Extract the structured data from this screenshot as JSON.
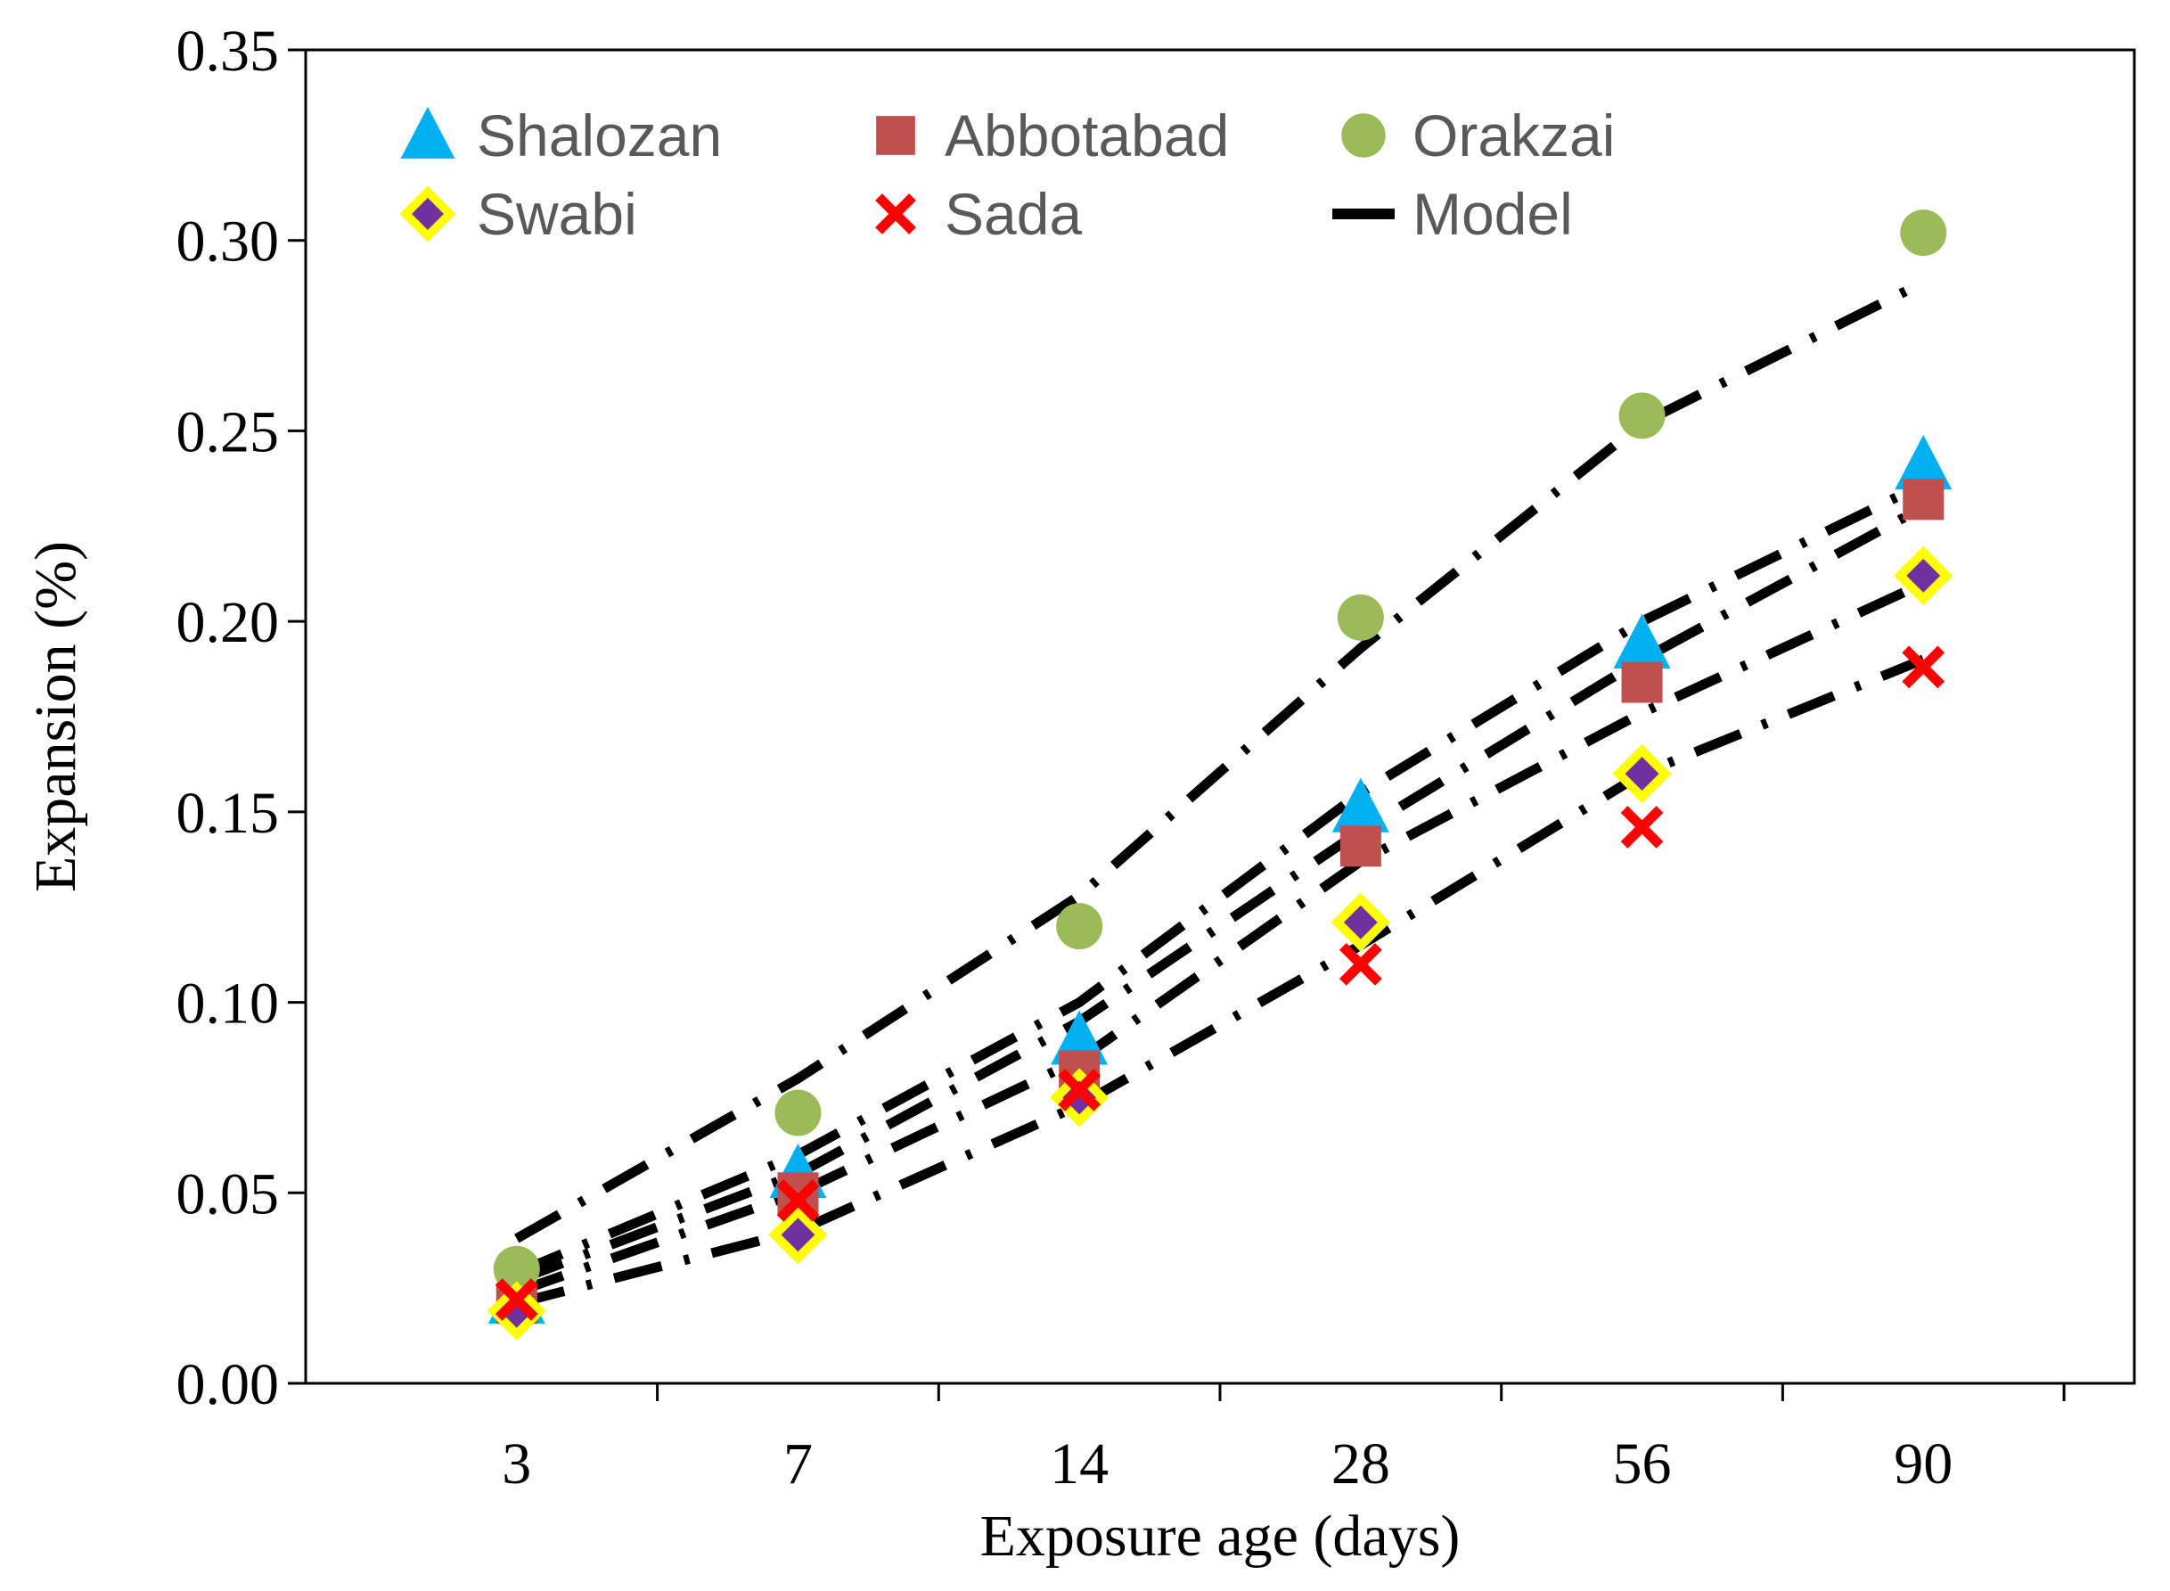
{
  "chart_data": {
    "type": "scatter",
    "title": "",
    "xlabel": "Exposure age (days)",
    "ylabel": "Expansion (%)",
    "categories": [
      "3",
      "7",
      "14",
      "28",
      "56",
      "90"
    ],
    "ylim": [
      0,
      0.35
    ],
    "yticks": [
      "0.00",
      "0.05",
      "0.10",
      "0.15",
      "0.20",
      "0.25",
      "0.30",
      "0.35"
    ],
    "grid": false,
    "legend_position": "top",
    "series": [
      {
        "name": "Shalozan",
        "marker": "triangle",
        "color": "#00B0F0",
        "values": [
          0.022,
          0.055,
          0.09,
          0.151,
          0.194,
          0.241
        ]
      },
      {
        "name": "Abbotabad",
        "marker": "square",
        "color": "#C0504D",
        "values": [
          0.021,
          0.05,
          0.082,
          0.141,
          0.184,
          0.232
        ]
      },
      {
        "name": "Orakzai",
        "marker": "circle",
        "color": "#9BBB59",
        "values": [
          0.03,
          0.071,
          0.12,
          0.201,
          0.254,
          0.302
        ]
      },
      {
        "name": "Swabi",
        "marker": "diamond",
        "color": "#7030A0",
        "edge_color": "#FFFF00",
        "values": [
          0.019,
          0.039,
          0.075,
          0.121,
          0.16,
          0.212
        ]
      },
      {
        "name": "Sada",
        "marker": "x",
        "color": "#FF0000",
        "values": [
          0.022,
          0.048,
          0.077,
          0.11,
          0.146,
          0.188
        ]
      }
    ],
    "model": {
      "name": "Model",
      "color": "#000000",
      "lines": [
        {
          "values": [
            0.038,
            0.08,
            0.128,
            0.193,
            0.252,
            0.289
          ]
        },
        {
          "values": [
            0.029,
            0.06,
            0.1,
            0.155,
            0.2,
            0.236
          ]
        },
        {
          "values": [
            0.027,
            0.055,
            0.095,
            0.145,
            0.19,
            0.23
          ]
        },
        {
          "values": [
            0.024,
            0.05,
            0.085,
            0.137,
            0.176,
            0.21
          ]
        },
        {
          "values": [
            0.021,
            0.04,
            0.073,
            0.115,
            0.16,
            0.19
          ]
        }
      ]
    }
  }
}
